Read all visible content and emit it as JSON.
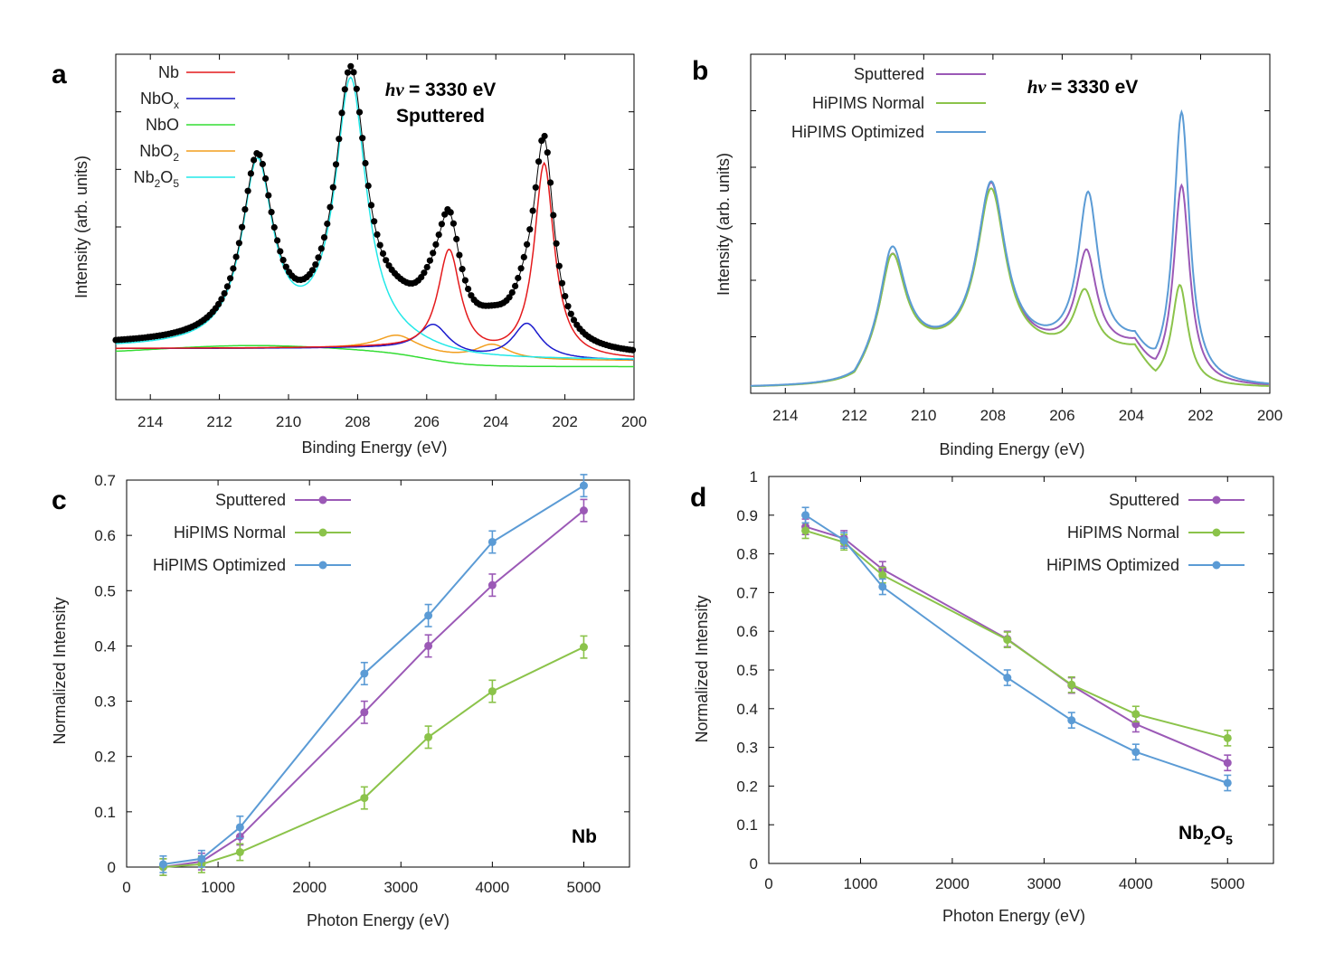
{
  "colors": {
    "Nb": "#e41a1c",
    "NbOx": "#1a1acd",
    "NbO": "#33dd33",
    "NbO2": "#f29e1d",
    "Nb2O5": "#22e8e8",
    "envelope": "#000000",
    "data": "#000000",
    "Sputtered": "#9b59b6",
    "HiPIMS Normal": "#8bc34a",
    "HiPIMS Optimized": "#5b9bd5"
  },
  "chart_data": [
    {
      "panel": "a",
      "type": "line",
      "title": "Sputtered",
      "annotation": "hν = 3330 eV",
      "annotation_label": "Sputtered",
      "xlabel": "Binding Energy (eV)",
      "ylabel": "Intensity (arb. units)",
      "xlim": [
        215,
        200
      ],
      "x_ticks": [
        "214",
        "212",
        "210",
        "208",
        "206",
        "204",
        "202",
        "200"
      ],
      "legend": [
        {
          "label": "Nb",
          "base": "Nb",
          "sub": "",
          "base2": "",
          "sub2": ""
        },
        {
          "label": "NbOx",
          "base": "NbO",
          "sub": "x",
          "base2": "",
          "sub2": ""
        },
        {
          "label": "NbO",
          "base": "NbO",
          "sub": "",
          "base2": "",
          "sub2": ""
        },
        {
          "label": "NbO2",
          "base": "NbO",
          "sub": "2",
          "base2": "",
          "sub2": ""
        },
        {
          "label": "Nb2O5",
          "base": "Nb",
          "sub": "2",
          "base2": "O",
          "sub2": "5"
        }
      ],
      "peaks": {
        "Nb": [
          {
            "center": 202.6,
            "height": 0.65,
            "width": 0.35
          },
          {
            "center": 205.35,
            "height": 0.35,
            "width": 0.4
          }
        ],
        "NbOx": [
          {
            "center": 203.1,
            "height": 0.12,
            "width": 0.5
          },
          {
            "center": 205.8,
            "height": 0.1,
            "width": 0.55
          }
        ],
        "NbO2": [
          {
            "center": 204.1,
            "height": 0.05,
            "width": 0.6
          },
          {
            "center": 206.85,
            "height": 0.05,
            "width": 0.7
          }
        ],
        "Nb2O5": [
          {
            "center": 208.2,
            "height": 0.88,
            "width": 0.55
          },
          {
            "center": 210.9,
            "height": 0.6,
            "width": 0.55
          }
        ]
      }
    },
    {
      "panel": "b",
      "type": "line",
      "annotation": "hν = 3330 eV",
      "xlabel": "Binding Energy (eV)",
      "ylabel": "Intensity (arb. units)",
      "xlim": [
        215,
        200
      ],
      "x_ticks": [
        "214",
        "212",
        "210",
        "208",
        "206",
        "204",
        "202",
        "200"
      ],
      "series": [
        {
          "name": "Sputtered",
          "peaks": [
            [
              210.9,
              0.77
            ],
            [
              208.05,
              1.2
            ],
            [
              205.3,
              0.78
            ],
            [
              202.55,
              1.39
            ]
          ]
        },
        {
          "name": "HiPIMS Normal",
          "peaks": [
            [
              210.9,
              0.77
            ],
            [
              208.05,
              1.17
            ],
            [
              205.35,
              0.55
            ],
            [
              202.6,
              0.8
            ]
          ]
        },
        {
          "name": "HiPIMS Optimized",
          "peaks": [
            [
              210.9,
              0.81
            ],
            [
              208.05,
              1.2
            ],
            [
              205.25,
              1.12
            ],
            [
              202.55,
              1.82
            ]
          ]
        }
      ]
    },
    {
      "panel": "c",
      "type": "line",
      "title": "Nb",
      "xlabel": "Photon Energy (eV)",
      "ylabel": "Normalized Intensity",
      "xlim": [
        0,
        5500
      ],
      "ylim": [
        0,
        0.7
      ],
      "x_ticks": [
        0,
        1000,
        2000,
        3000,
        4000,
        5000
      ],
      "y_ticks": [
        "0",
        "0.1",
        "0.2",
        "0.3",
        "0.4",
        "0.5",
        "0.6",
        "0.7"
      ],
      "x": [
        400,
        820,
        1240,
        2600,
        3300,
        4000,
        5000
      ],
      "series": [
        {
          "name": "Sputtered",
          "values": [
            0.0,
            0.01,
            0.055,
            0.28,
            0.4,
            0.51,
            0.645
          ],
          "errors": [
            0.015,
            0.015,
            0.015,
            0.02,
            0.02,
            0.02,
            0.02
          ]
        },
        {
          "name": "HiPIMS Normal",
          "values": [
            0.0,
            0.005,
            0.027,
            0.125,
            0.235,
            0.318,
            0.398
          ],
          "errors": [
            0.015,
            0.015,
            0.015,
            0.02,
            0.02,
            0.02,
            0.02
          ]
        },
        {
          "name": "HiPIMS Optimized",
          "values": [
            0.005,
            0.015,
            0.072,
            0.35,
            0.455,
            0.588,
            0.69
          ],
          "errors": [
            0.015,
            0.015,
            0.02,
            0.02,
            0.02,
            0.02,
            0.02
          ]
        }
      ]
    },
    {
      "panel": "d",
      "type": "line",
      "title": "Nb2O5",
      "title_base": "Nb",
      "title_sub": "2",
      "title_base2": "O",
      "title_sub2": "5",
      "xlabel": "Photon Energy (eV)",
      "ylabel": "Normalized Intensity",
      "xlim": [
        0,
        5500
      ],
      "ylim": [
        0,
        1
      ],
      "x_ticks": [
        0,
        1000,
        2000,
        3000,
        4000,
        5000
      ],
      "y_ticks": [
        "0",
        "0.1",
        "0.2",
        "0.3",
        "0.4",
        "0.5",
        "0.6",
        "0.7",
        "0.8",
        "0.9",
        "1"
      ],
      "x": [
        400,
        820,
        1240,
        2600,
        3300,
        4000,
        5000
      ],
      "series": [
        {
          "name": "Sputtered",
          "values": [
            0.87,
            0.84,
            0.76,
            0.58,
            0.46,
            0.36,
            0.26
          ],
          "errors": [
            0.02,
            0.02,
            0.02,
            0.02,
            0.02,
            0.02,
            0.02
          ]
        },
        {
          "name": "HiPIMS Normal",
          "values": [
            0.86,
            0.83,
            0.745,
            0.578,
            0.462,
            0.386,
            0.324
          ],
          "errors": [
            0.02,
            0.02,
            0.02,
            0.02,
            0.02,
            0.02,
            0.02
          ]
        },
        {
          "name": "HiPIMS Optimized",
          "values": [
            0.9,
            0.835,
            0.715,
            0.48,
            0.37,
            0.288,
            0.208
          ],
          "errors": [
            0.02,
            0.02,
            0.02,
            0.02,
            0.02,
            0.02,
            0.02
          ]
        }
      ]
    }
  ],
  "panel_labels": [
    "a",
    "b",
    "c",
    "d"
  ]
}
